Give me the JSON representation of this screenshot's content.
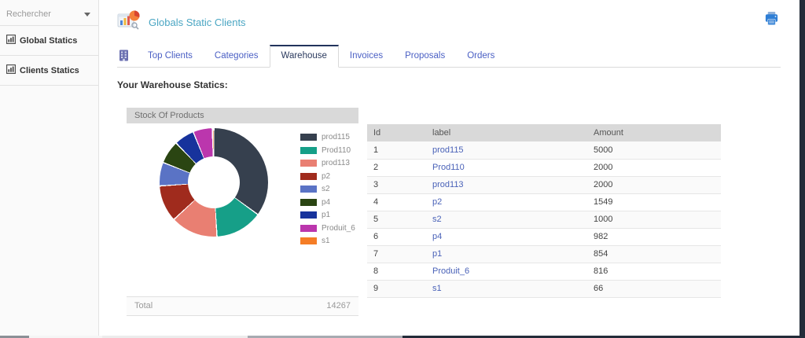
{
  "sidebar": {
    "search": {
      "placeholder": "Rechercher",
      "icon": "caret-down-icon"
    },
    "items": [
      {
        "label": "Global Statics",
        "icon": "bar-chart-icon"
      },
      {
        "label": "Clients Statics",
        "icon": "bar-chart-icon"
      }
    ]
  },
  "header": {
    "title": "Globals Static Clients",
    "logo_icon": "statistics-logo",
    "print_icon": "printer-icon"
  },
  "tabs": {
    "icon_tab": "building-icon",
    "items": [
      {
        "label": "Top Clients",
        "active": false
      },
      {
        "label": "Categories",
        "active": false
      },
      {
        "label": "Warehouse",
        "active": true
      },
      {
        "label": "Invoices",
        "active": false
      },
      {
        "label": "Proposals",
        "active": false
      },
      {
        "label": "Orders",
        "active": false
      }
    ]
  },
  "section_title": "Your Warehouse Statics:",
  "chart_data": {
    "type": "pie",
    "variant": "donut",
    "title": "Stock Of Products",
    "legend_position": "right",
    "labels": [
      "prod115",
      "Prod110",
      "prod113",
      "p2",
      "s2",
      "p4",
      "p1",
      "Produit_6",
      "s1"
    ],
    "values": [
      5000,
      2000,
      2000,
      1549,
      1000,
      982,
      854,
      816,
      66
    ],
    "colors": [
      "#36404e",
      "#169f88",
      "#e97f72",
      "#a02b1d",
      "#5a73c5",
      "#2a4512",
      "#17339c",
      "#bb36ad",
      "#f57d26"
    ],
    "total_label": "Total",
    "total_value": "14267"
  },
  "table": {
    "columns": [
      "Id",
      "label",
      "Amount"
    ],
    "rows": [
      {
        "id": "1",
        "label": "prod115",
        "amount": "5000"
      },
      {
        "id": "2",
        "label": "Prod110",
        "amount": "2000"
      },
      {
        "id": "3",
        "label": "prod113",
        "amount": "2000"
      },
      {
        "id": "4",
        "label": "p2",
        "amount": "1549"
      },
      {
        "id": "5",
        "label": "s2",
        "amount": "1000"
      },
      {
        "id": "6",
        "label": "p4",
        "amount": "982"
      },
      {
        "id": "7",
        "label": "p1",
        "amount": "854"
      },
      {
        "id": "8",
        "label": "Produit_6",
        "amount": "816"
      },
      {
        "id": "9",
        "label": "s1",
        "amount": "66"
      }
    ]
  },
  "colors": {
    "title_accent": "#4ba6c3",
    "tab_link": "#4a5fc4",
    "active_tab_border": "#22335c",
    "table_link": "#4a62b8"
  }
}
